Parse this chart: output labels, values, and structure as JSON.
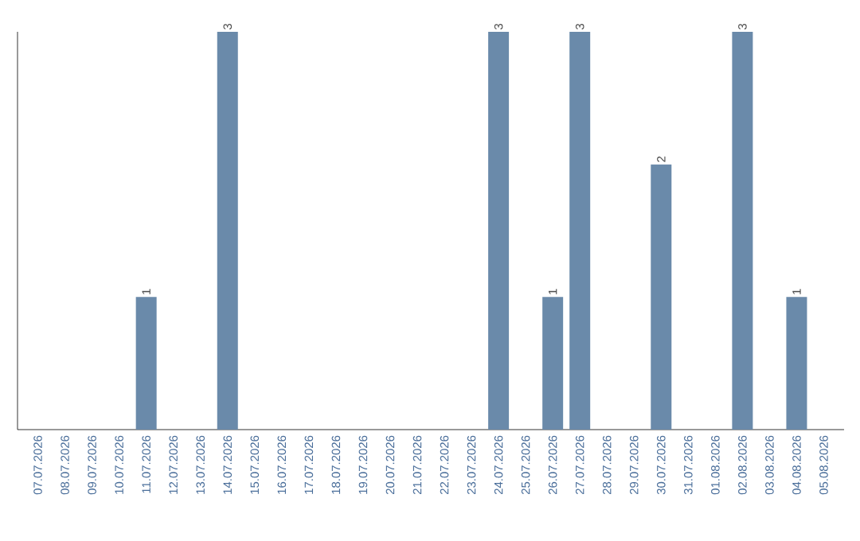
{
  "chart_data": {
    "type": "bar",
    "categories": [
      "07.07.2026",
      "08.07.2026",
      "09.07.2026",
      "10.07.2026",
      "11.07.2026",
      "12.07.2026",
      "13.07.2026",
      "14.07.2026",
      "15.07.2026",
      "16.07.2026",
      "17.07.2026",
      "18.07.2026",
      "19.07.2026",
      "20.07.2026",
      "21.07.2026",
      "22.07.2026",
      "23.07.2026",
      "24.07.2026",
      "25.07.2026",
      "26.07.2026",
      "27.07.2026",
      "28.07.2026",
      "29.07.2026",
      "30.07.2026",
      "31.07.2026",
      "01.08.2026",
      "02.08.2026",
      "03.08.2026",
      "04.08.2026",
      "05.08.2026"
    ],
    "values": [
      0,
      0,
      0,
      0,
      1,
      0,
      0,
      3,
      0,
      0,
      0,
      0,
      0,
      0,
      0,
      0,
      0,
      3,
      0,
      1,
      3,
      0,
      0,
      2,
      0,
      0,
      3,
      0,
      1,
      0
    ],
    "value_labels": [
      null,
      null,
      null,
      null,
      "1",
      null,
      null,
      "3",
      null,
      null,
      null,
      null,
      null,
      null,
      null,
      null,
      null,
      "3",
      null,
      "1",
      "3",
      null,
      null,
      "2",
      null,
      null,
      "3",
      null,
      "1",
      null
    ],
    "color": "#6a8aaa",
    "ylim": [
      0,
      3
    ],
    "tick_labels": "x"
  }
}
